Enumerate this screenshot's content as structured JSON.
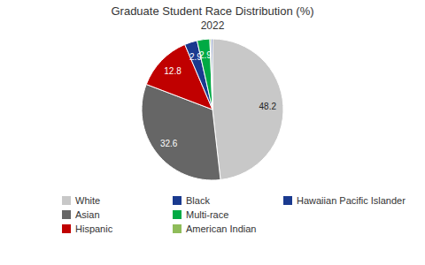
{
  "chart_data": {
    "type": "pie",
    "title": "Graduate Student Race Distribution (%)",
    "subtitle": "2022",
    "categories": [
      "White",
      "Asian",
      "Hispanic",
      "Black",
      "Multi-race",
      "American Indian",
      "Hawaiian Pacific Islander"
    ],
    "values": [
      48.2,
      32.6,
      12.8,
      2.9,
      2.9,
      0.3,
      0.3
    ],
    "value_labels": [
      "48.2",
      "32.6",
      "12.8",
      "2.9",
      "2.9",
      null,
      null
    ],
    "colors": [
      "#c8c8c8",
      "#666666",
      "#c00000",
      "#1a3a8f",
      "#00aa44",
      "#8fbc5a",
      "#1a3a8f"
    ],
    "data_labels": true,
    "legend": "bottom"
  }
}
